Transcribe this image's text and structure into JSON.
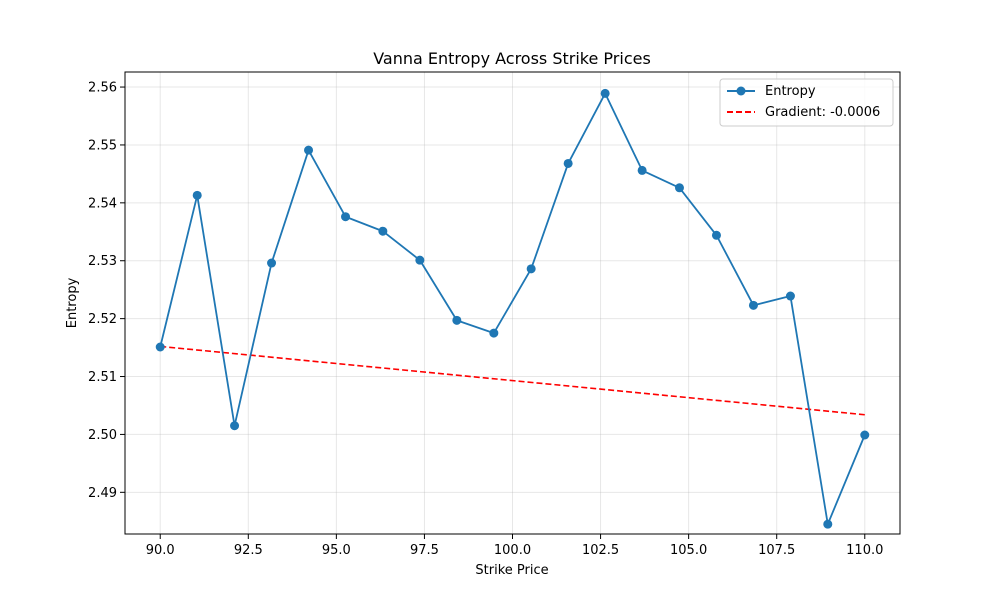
{
  "chart_data": {
    "type": "line",
    "title": "Vanna Entropy Across Strike Prices",
    "xlabel": "Strike Price",
    "ylabel": "Entropy",
    "xlim": [
      89.0,
      111.0
    ],
    "ylim": [
      2.4828,
      2.5626
    ],
    "xticks": [
      90.0,
      92.5,
      95.0,
      97.5,
      100.0,
      102.5,
      105.0,
      107.5,
      110.0
    ],
    "xtick_labels": [
      "90.0",
      "92.5",
      "95.0",
      "97.5",
      "100.0",
      "102.5",
      "105.0",
      "107.5",
      "110.0"
    ],
    "yticks": [
      2.49,
      2.5,
      2.51,
      2.52,
      2.53,
      2.54,
      2.55,
      2.56
    ],
    "ytick_labels": [
      "2.49",
      "2.50",
      "2.51",
      "2.52",
      "2.53",
      "2.54",
      "2.55",
      "2.56"
    ],
    "grid": true,
    "legend_position": "top-right",
    "series": [
      {
        "name": "Entropy",
        "color": "#1f77b4",
        "style": "solid-with-markers",
        "x": [
          90.0,
          91.05,
          92.11,
          93.16,
          94.21,
          95.26,
          96.32,
          97.37,
          98.42,
          99.47,
          100.53,
          101.58,
          102.63,
          103.68,
          104.74,
          105.79,
          106.84,
          107.89,
          108.95,
          110.0
        ],
        "y": [
          2.5151,
          2.5413,
          2.5015,
          2.5296,
          2.5491,
          2.5376,
          2.5351,
          2.5301,
          2.5197,
          2.5175,
          2.5286,
          2.5468,
          2.5589,
          2.5456,
          2.5426,
          2.5344,
          2.5223,
          2.5239,
          2.4845,
          2.4999
        ]
      },
      {
        "name": "Gradient: -0.0006",
        "color": "#ff0000",
        "style": "dashed",
        "x": [
          90.0,
          110.0
        ],
        "y": [
          2.5152,
          2.5034
        ]
      }
    ]
  }
}
